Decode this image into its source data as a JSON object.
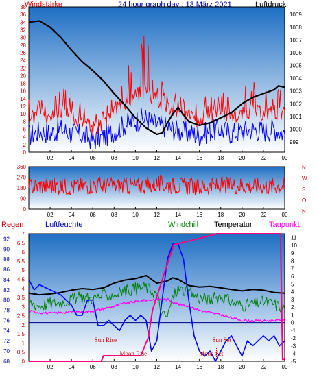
{
  "header": {
    "left_label": "Windstärke",
    "title": "24 hour graph day : 13 März 2021",
    "right_label": "Luftdruck"
  },
  "colors": {
    "background": "#ffffff",
    "plot_top": "#1f6fc4",
    "plot_bottom": "#ffffff",
    "wind": "#ff0000",
    "gust_band": "#0000ff",
    "pressure": "#000000",
    "humidity": "#0000ff",
    "windchill": "#008000",
    "temperature": "#000000",
    "dewpoint": "#ff00ff",
    "rain": "#ff0080",
    "rain_axis": "#cc0000"
  },
  "chart_data": [
    {
      "type": "line",
      "name": "top-panel",
      "x_ticks": [
        "02",
        "04",
        "06",
        "08",
        "10",
        "12",
        "14",
        "16",
        "18",
        "20",
        "22",
        "00"
      ],
      "y_left": {
        "label": "Windstärke",
        "ticks": [
          0,
          2,
          4,
          6,
          8,
          10,
          12,
          14,
          16,
          18,
          20,
          22,
          24,
          26,
          28,
          30,
          32,
          34,
          36,
          38
        ],
        "range": [
          0,
          38
        ]
      },
      "y_right": {
        "label": "Luftdruck",
        "ticks": [
          999,
          1000,
          1001,
          1002,
          1003,
          1004,
          1005,
          1006,
          1007,
          1008,
          1009
        ],
        "range": [
          998.2,
          1009.6
        ]
      },
      "series": [
        {
          "role": "pressure",
          "x": [
            0,
            1,
            2,
            3,
            4,
            5,
            6,
            7,
            8,
            9,
            10,
            11,
            12,
            12.5,
            13,
            13.5,
            14,
            15,
            16,
            17,
            18,
            19,
            20,
            21,
            22,
            23,
            23.4,
            24
          ],
          "y": [
            1008.4,
            1008.5,
            1008.0,
            1007.2,
            1006.2,
            1005.3,
            1004.6,
            1003.8,
            1002.8,
            1001.9,
            1000.9,
            1000.1,
            999.6,
            999.7,
            1000.5,
            1001.2,
            1001.7,
            1000.6,
            1000.3,
            1000.5,
            1000.9,
            1001.3,
            1002.0,
            1002.5,
            1002.8,
            1003.1,
            1003.4,
            1003.3
          ]
        },
        {
          "role": "wind-speed",
          "x": [
            0,
            1,
            2,
            3,
            4,
            5,
            6,
            7,
            8,
            9,
            10,
            11,
            12,
            13,
            14,
            15,
            16,
            17,
            18,
            19,
            20,
            21,
            22,
            23,
            24
          ],
          "y": [
            8,
            10,
            9,
            11,
            9,
            8,
            6,
            7,
            10,
            13,
            15,
            16,
            13,
            12,
            10,
            9,
            8,
            10,
            11,
            9,
            10,
            11,
            10,
            11,
            9
          ]
        },
        {
          "role": "wind-gust",
          "x": [
            0,
            1,
            2,
            3,
            4,
            5,
            6,
            7,
            8,
            9,
            10,
            11,
            12,
            13,
            14,
            15,
            16,
            17,
            18,
            19,
            20,
            21,
            22,
            23,
            24
          ],
          "y": [
            14,
            16,
            15,
            18,
            14,
            13,
            10,
            12,
            16,
            22,
            28,
            37,
            20,
            18,
            16,
            14,
            13,
            16,
            20,
            15,
            17,
            19,
            18,
            19,
            15
          ]
        }
      ]
    },
    {
      "type": "line",
      "name": "wind-direction",
      "x_ticks": [
        "02",
        "04",
        "06",
        "08",
        "10",
        "12",
        "14",
        "16",
        "18",
        "20",
        "22",
        "00"
      ],
      "y_left": {
        "ticks": [
          0,
          90,
          180,
          270,
          360
        ],
        "range": [
          0,
          360
        ]
      },
      "y_right_labels": [
        "N",
        "W",
        "S",
        "O",
        "N"
      ],
      "series": [
        {
          "role": "wind-direction",
          "x": [
            0,
            2,
            4,
            6,
            8,
            10,
            12,
            14,
            16,
            18,
            20,
            22,
            24
          ],
          "y": [
            195,
            200,
            190,
            205,
            200,
            195,
            210,
            200,
            190,
            200,
            205,
            195,
            200
          ]
        }
      ]
    },
    {
      "type": "line",
      "name": "bottom-panel",
      "x_ticks": [
        "02",
        "04",
        "06",
        "08",
        "10",
        "12",
        "14",
        "16",
        "18",
        "20",
        "22",
        "00"
      ],
      "legend": [
        "Regen",
        "Luftfeuchte",
        "Windchill",
        "Temperatur",
        "Taupunkt"
      ],
      "y_rain": {
        "label": "Regen",
        "ticks": [
          0,
          0.5,
          1,
          1.5,
          2,
          2.5,
          3,
          3.5,
          4,
          4.5,
          5,
          5.5,
          6,
          6.5,
          7
        ],
        "range": [
          0,
          7
        ]
      },
      "y_humidity": {
        "label": "Luftfeuchte",
        "ticks": [
          68,
          70,
          72,
          74,
          76,
          78,
          80,
          82,
          84,
          86,
          88,
          90,
          92
        ],
        "range": [
          68,
          93
        ]
      },
      "y_temp": {
        "ticks": [
          -5,
          -4,
          -3,
          -2,
          -1,
          0,
          1,
          2,
          3,
          4,
          5,
          6,
          7,
          8,
          9,
          10,
          11
        ],
        "range": [
          -5,
          11.5
        ]
      },
      "annotations": [
        {
          "text": "Sun Rise",
          "x": 7.2
        },
        {
          "text": "Moon Rise",
          "x": 9.8
        },
        {
          "text": "Sun Set",
          "x": 18.1
        },
        {
          "text": "Moon Set",
          "x": 17.1
        }
      ],
      "series": [
        {
          "name": "Temperatur",
          "x": [
            0,
            1,
            2,
            3,
            4,
            5,
            6,
            7,
            8,
            9,
            10,
            11,
            11.5,
            12,
            13,
            13.5,
            14,
            15,
            16,
            17,
            18,
            19,
            20,
            21,
            22,
            23,
            24
          ],
          "y": [
            3.8,
            3.6,
            3.7,
            3.9,
            4.2,
            4.4,
            4.3,
            4.5,
            5.1,
            5.5,
            5.7,
            6.1,
            5.6,
            5.1,
            5.4,
            5.8,
            5.6,
            4.8,
            4.6,
            4.7,
            4.5,
            4.3,
            4.1,
            4.3,
            4.2,
            3.9,
            3.8
          ]
        },
        {
          "name": "Windchill",
          "x": [
            0,
            1,
            2,
            3,
            4,
            5,
            6,
            7,
            8,
            9,
            10,
            11,
            12,
            12.5,
            13,
            13.5,
            14,
            15,
            16,
            17,
            18,
            19,
            20,
            21,
            22,
            23,
            24
          ],
          "y": [
            2.6,
            2.2,
            2.5,
            2.6,
            3.0,
            3.3,
            3.1,
            3.5,
            3.6,
            4.1,
            4.4,
            4.6,
            3.7,
            1.0,
            0.8,
            3.2,
            4.4,
            3.9,
            3.2,
            2.9,
            3.5,
            2.7,
            2.2,
            2.4,
            2.7,
            2.4,
            1.9
          ]
        },
        {
          "name": "Taupunkt",
          "x": [
            0,
            1,
            2,
            3,
            4,
            5,
            6,
            7,
            8,
            9,
            10,
            11,
            12,
            13,
            14,
            15,
            16,
            17,
            18,
            19,
            20,
            21,
            22,
            23,
            24
          ],
          "y": [
            1.5,
            1.3,
            1.2,
            1.3,
            1.4,
            1.4,
            1.5,
            1.8,
            2.1,
            2.5,
            2.7,
            2.9,
            3.0,
            3.0,
            2.4,
            2.1,
            1.6,
            1.3,
            1.0,
            0.6,
            0.3,
            0.2,
            0.2,
            0.3,
            0.3
          ]
        },
        {
          "name": "Luftfeuchte",
          "x": [
            0,
            0.5,
            1,
            2,
            3,
            4,
            4.5,
            5,
            5.5,
            6,
            6.5,
            7,
            7.5,
            8,
            8.5,
            9,
            9.5,
            10,
            10.5,
            11,
            11.5,
            12,
            12.5,
            13,
            13.5,
            14,
            14.5,
            15,
            15.5,
            16,
            16.5,
            17,
            17.5,
            18,
            18.5,
            19,
            19.5,
            20,
            20.5,
            21,
            21.5,
            22,
            22.5,
            23,
            23.5,
            24
          ],
          "y": [
            84,
            82,
            83,
            82,
            81,
            79,
            77,
            77,
            80,
            80,
            75,
            75,
            76,
            75,
            74,
            76,
            77,
            76,
            77,
            76,
            70,
            72,
            80,
            88,
            91,
            91,
            88,
            80,
            73,
            70,
            69,
            70,
            68,
            70,
            72,
            73,
            71,
            69,
            72,
            71,
            72,
            73,
            72,
            73,
            71,
            72
          ]
        },
        {
          "name": "Regen",
          "x": [
            0,
            6.8,
            7.0,
            10.5,
            11.2,
            11.6,
            12.8,
            13.6,
            17.0,
            17.6,
            23.6,
            23.8,
            24
          ],
          "y": [
            0,
            0,
            0.3,
            0.3,
            1.3,
            2.8,
            5.0,
            6.4,
            6.9,
            7.0,
            7.0,
            0.1,
            0.1
          ]
        }
      ]
    }
  ]
}
